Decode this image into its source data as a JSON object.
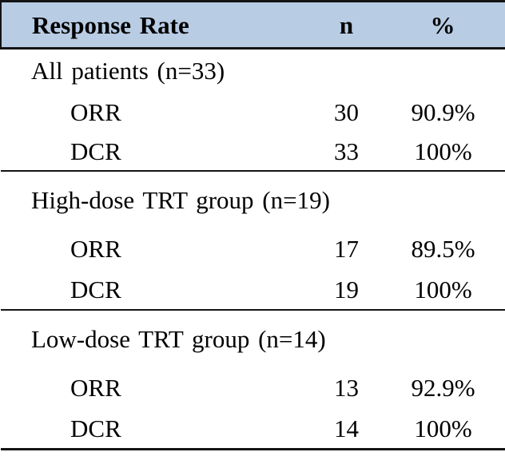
{
  "table": {
    "columns": {
      "label": "Response Rate",
      "n": "n",
      "pct": "%"
    },
    "style": {
      "header_bg": "#b8cce4",
      "line_color": "#141414",
      "text_color": "#000000"
    },
    "sections": [
      {
        "title": "All patients (n=33)",
        "rows": [
          {
            "label": "ORR",
            "n": "30",
            "pct": "90.9%"
          },
          {
            "label": "DCR",
            "n": "33",
            "pct": "100%"
          }
        ]
      },
      {
        "title": "High-dose TRT group (n=19)",
        "rows": [
          {
            "label": "ORR",
            "n": "17",
            "pct": "89.5%"
          },
          {
            "label": "DCR",
            "n": "19",
            "pct": "100%"
          }
        ]
      },
      {
        "title": "Low-dose TRT group (n=14)",
        "rows": [
          {
            "label": "ORR",
            "n": "13",
            "pct": "92.9%"
          },
          {
            "label": "DCR",
            "n": "14",
            "pct": "100%"
          }
        ]
      }
    ]
  },
  "chart_data": {
    "type": "table",
    "title": "Response Rate",
    "columns": [
      "Response Rate",
      "n",
      "%"
    ],
    "rows": [
      [
        "All patients (n=33)",
        "",
        ""
      ],
      [
        "ORR",
        "30",
        "90.9%"
      ],
      [
        "DCR",
        "33",
        "100%"
      ],
      [
        "High-dose TRT group (n=19)",
        "",
        ""
      ],
      [
        "ORR",
        "17",
        "89.5%"
      ],
      [
        "DCR",
        "19",
        "100%"
      ],
      [
        "Low-dose TRT group (n=14)",
        "",
        ""
      ],
      [
        "ORR",
        "13",
        "92.9%"
      ],
      [
        "DCR",
        "14",
        "100%"
      ]
    ]
  }
}
